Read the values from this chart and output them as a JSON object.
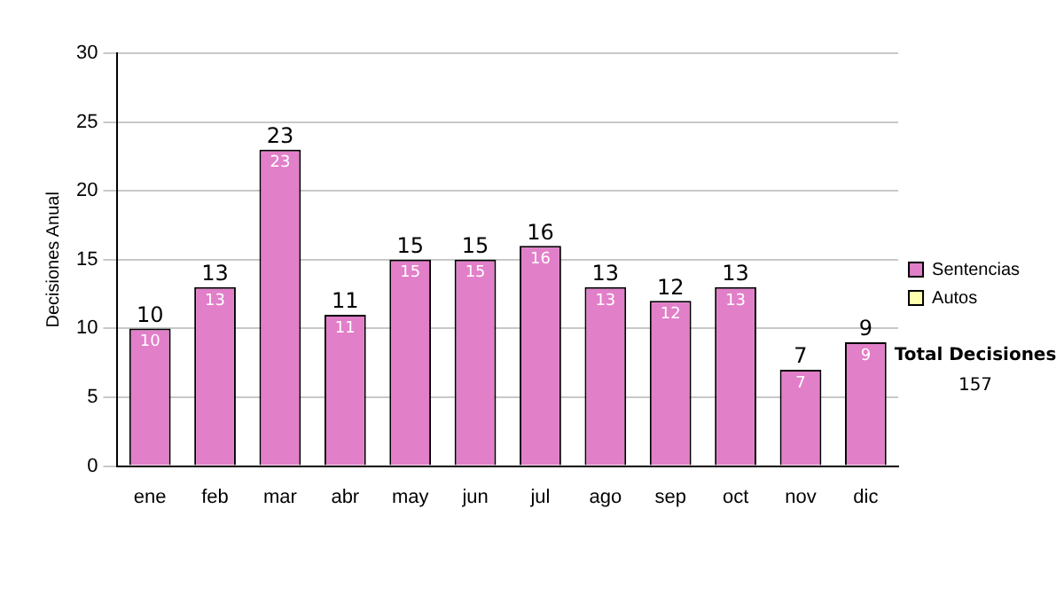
{
  "chart_data": {
    "type": "bar",
    "ylabel": "Decisiones Anual",
    "categories": [
      "ene",
      "feb",
      "mar",
      "abr",
      "may",
      "jun",
      "jul",
      "ago",
      "sep",
      "oct",
      "nov",
      "dic"
    ],
    "series": [
      {
        "name": "Sentencias",
        "color": "#e27fc9",
        "values": [
          10,
          13,
          23,
          11,
          15,
          15,
          16,
          13,
          12,
          13,
          7,
          9
        ],
        "value_labels": [
          "10",
          "13",
          "23",
          "11",
          "15",
          "15",
          "16",
          "13",
          "12",
          "13",
          "7",
          "9"
        ]
      },
      {
        "name": "Autos",
        "color": "#ffffb0",
        "values": [
          0,
          0,
          0,
          0,
          0,
          0,
          0,
          0,
          0,
          0,
          0,
          0
        ]
      }
    ],
    "stacked": true,
    "totals": [
      "10",
      "13",
      "23",
      "11",
      "15",
      "15",
      "16",
      "13",
      "12",
      "13",
      "7",
      "9"
    ],
    "ylim": [
      0,
      30
    ],
    "yticks": [
      0,
      5,
      10,
      15,
      20,
      25,
      30
    ],
    "grid": "y",
    "legend": "right",
    "annotations": [
      "Total Decisiones",
      "157"
    ]
  }
}
